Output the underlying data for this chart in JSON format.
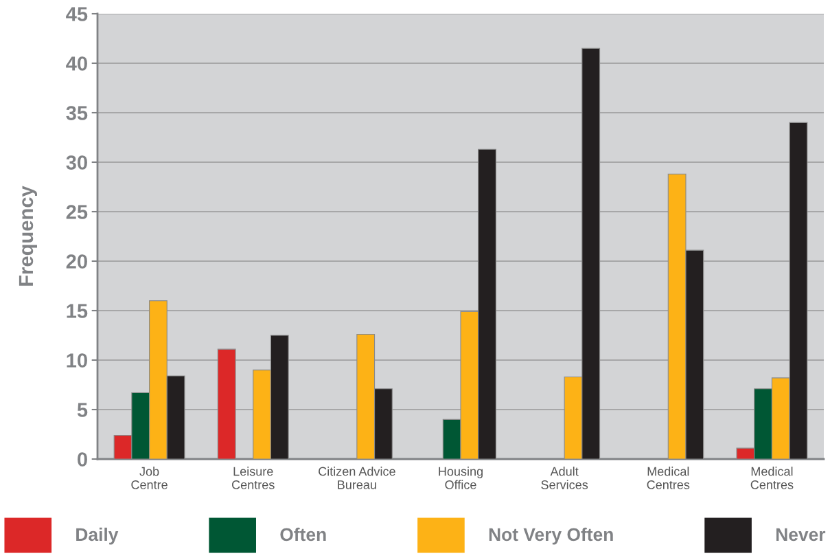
{
  "chart_data": {
    "type": "bar",
    "ylabel": "Frequency",
    "categories": [
      "Job\nCentre",
      "Leisure\nCentres",
      "Citizen Advice\nBureau",
      "Housing\nOffice",
      "Adult\nServices",
      "Medical\nCentres",
      "Medical\nCentres"
    ],
    "series": [
      {
        "name": "Daily",
        "color": "#dc2828",
        "values": [
          2.4,
          11.1,
          null,
          null,
          null,
          null,
          1.1
        ]
      },
      {
        "name": "Often",
        "color": "#005734",
        "values": [
          6.7,
          null,
          null,
          4.0,
          null,
          null,
          7.1
        ]
      },
      {
        "name": "Not Very Often",
        "color": "#fdb216",
        "values": [
          16.0,
          9.0,
          12.6,
          14.9,
          8.3,
          28.8,
          8.2
        ]
      },
      {
        "name": "Never",
        "color": "#231f20",
        "values": [
          8.4,
          12.5,
          7.1,
          31.3,
          41.5,
          21.1,
          34.0
        ]
      }
    ],
    "ylim": [
      0,
      45
    ],
    "yticks": [
      0,
      5,
      10,
      15,
      20,
      25,
      30,
      35,
      40,
      45
    ],
    "grid": "y",
    "legend": "bottom"
  }
}
